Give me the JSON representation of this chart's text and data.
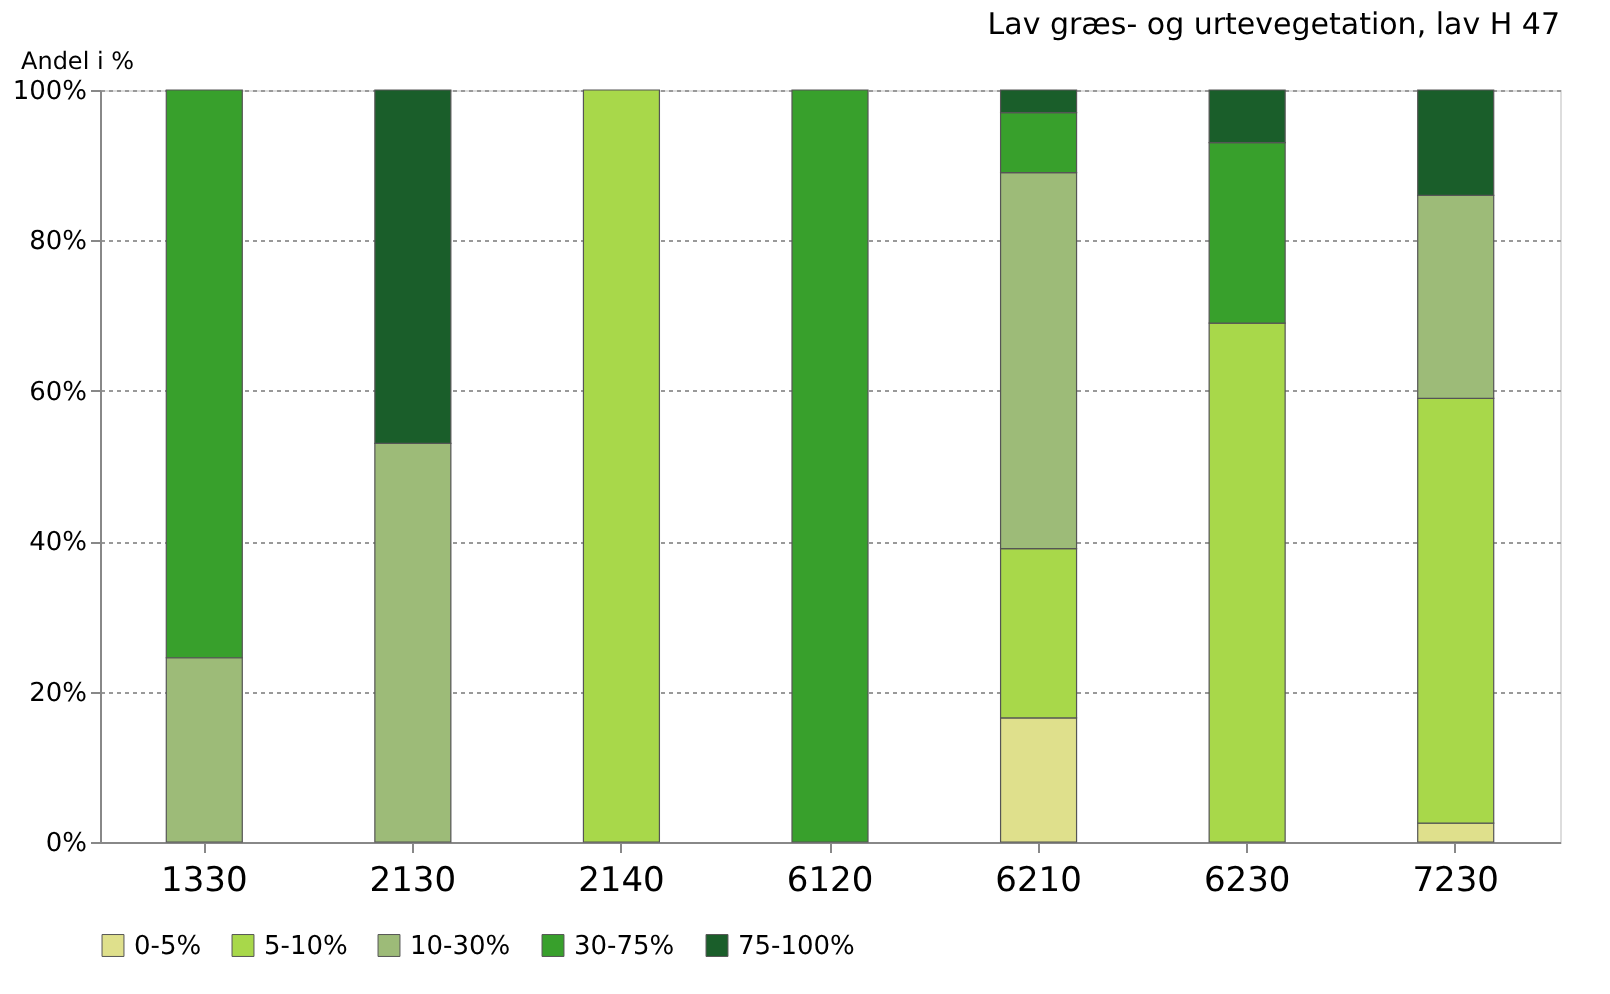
{
  "chart_data": {
    "type": "bar",
    "stacked": true,
    "title": "Lav græs- og urtevegetation, lav H 47",
    "ylabel": "Andel i %",
    "categories": [
      "1330",
      "2130",
      "2140",
      "6120",
      "6210",
      "6230",
      "7230"
    ],
    "series": [
      {
        "name": "0-5%",
        "color": "#dfe08c",
        "values": [
          null,
          null,
          null,
          null,
          16.5,
          null,
          2.5
        ]
      },
      {
        "name": "5-10%",
        "color": "#a8d84a",
        "values": [
          null,
          null,
          100,
          null,
          22.5,
          69,
          56.5
        ]
      },
      {
        "name": "10-30%",
        "color": "#9dbb78",
        "values": [
          24.5,
          53,
          null,
          null,
          50,
          null,
          27
        ]
      },
      {
        "name": "30-75%",
        "color": "#38a02c",
        "values": [
          75.5,
          null,
          null,
          100,
          8,
          24,
          null
        ]
      },
      {
        "name": "75-100%",
        "color": "#1a5e2a",
        "values": [
          null,
          47,
          null,
          null,
          3,
          7,
          14
        ]
      }
    ],
    "ylim": [
      0,
      100
    ],
    "yticks": [
      {
        "value": 0,
        "label": "0%"
      },
      {
        "value": 20,
        "label": "20%"
      },
      {
        "value": 40,
        "label": "40%"
      },
      {
        "value": 60,
        "label": "60%"
      },
      {
        "value": 80,
        "label": "80%"
      },
      {
        "value": 100,
        "label": "100%"
      }
    ],
    "grid": "y",
    "legend": "bottom"
  }
}
